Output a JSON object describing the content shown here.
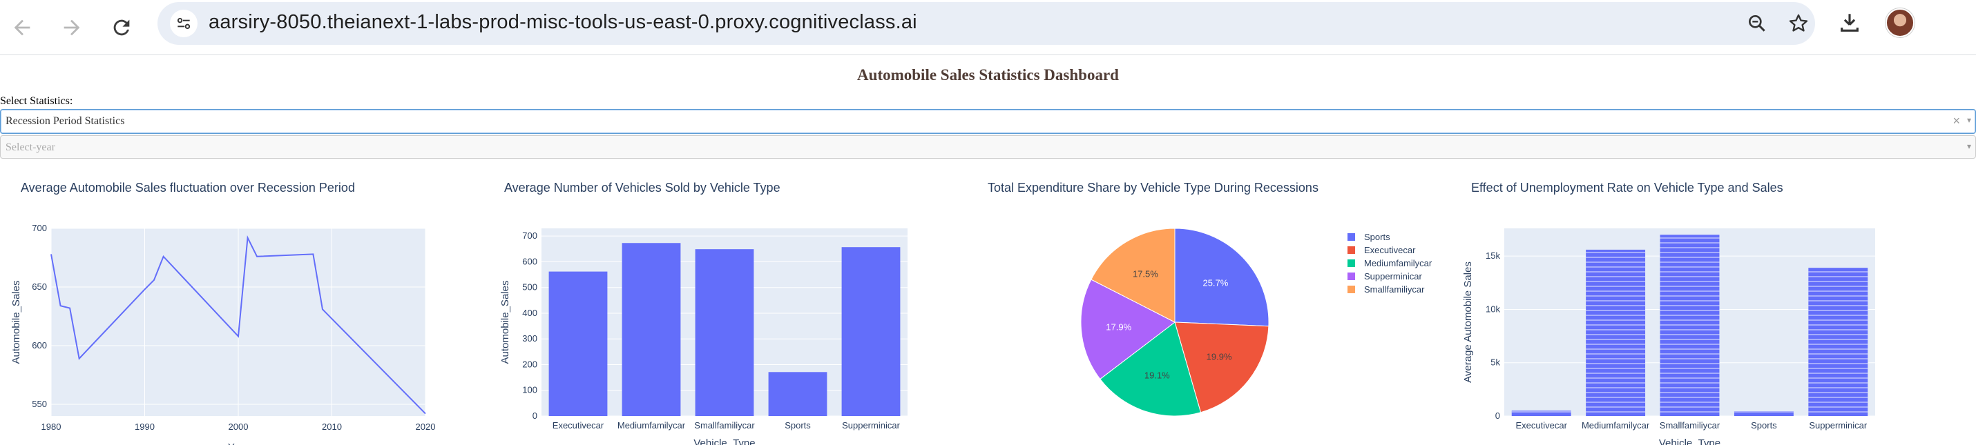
{
  "browser": {
    "url": "aarsiry-8050.theianext-1-labs-prod-misc-tools-us-east-0.proxy.cognitiveclass.ai",
    "icons": [
      "back-arrow-icon",
      "forward-arrow-icon",
      "reload-icon",
      "site-settings-icon",
      "zoom-icon",
      "bookmark-star-icon",
      "download-icon",
      "profile-avatar"
    ]
  },
  "dashboard": {
    "title": "Automobile Sales Statistics Dashboard",
    "select_label": "Select Statistics:",
    "stats_dropdown_value": "Recession Period Statistics",
    "year_dropdown_placeholder": "Select-year",
    "clear_symbol": "×",
    "arrow_symbol": "▾"
  },
  "colors": {
    "title": "#503D36",
    "plot_bg": "#E5ECF6",
    "primary_series": "#636EFA",
    "pie_colors": [
      "#636EFA",
      "#EF553B",
      "#00CC96",
      "#AB63FA",
      "#FFA15A"
    ]
  },
  "chart_data": [
    {
      "type": "line",
      "title": "Average Automobile Sales fluctuation over Recession Period",
      "xlabel": "Year",
      "ylabel": "Automobile_Sales",
      "x": [
        1980,
        1981,
        1982,
        1983,
        1990,
        1991,
        1992,
        2000,
        2001,
        2002,
        2008,
        2009,
        2020
      ],
      "y": [
        678,
        634,
        632,
        589,
        648,
        656,
        676,
        608,
        692,
        676,
        678,
        631,
        542
      ],
      "xlim": [
        1980,
        2020
      ],
      "ylim": [
        540,
        700
      ],
      "xticks": [
        1980,
        1990,
        2000,
        2010,
        2020
      ],
      "yticks": [
        550,
        600,
        650,
        700
      ],
      "grid": true
    },
    {
      "type": "bar",
      "title": "Average Number of Vehicles Sold by Vehicle Type",
      "xlabel": "Vehicle_Type",
      "ylabel": "Automobile_Sales",
      "categories": [
        "Executivecar",
        "Mediumfamilycar",
        "Smallfamiliycar",
        "Sports",
        "Supperminicar"
      ],
      "values": [
        562,
        673,
        649,
        171,
        657
      ],
      "ylim": [
        0,
        730
      ],
      "yticks": [
        0,
        100,
        200,
        300,
        400,
        500,
        600,
        700
      ],
      "grid": true
    },
    {
      "type": "pie",
      "title": "Total Expenditure Share by Vehicle Type During Recessions",
      "labels": [
        "Sports",
        "Executivecar",
        "Mediumfamilycar",
        "Supperminicar",
        "Smallfamiliycar"
      ],
      "values": [
        25.7,
        19.9,
        19.1,
        17.9,
        17.5
      ],
      "slice_labels": [
        "25.7%",
        "19.9%",
        "19.1%",
        "17.9%",
        "17.5%"
      ],
      "legend": "right"
    },
    {
      "type": "bar",
      "title": "Effect of Unemployment Rate on Vehicle Type and Sales",
      "xlabel": "Vehicle_Type",
      "ylabel": "Average Automobile Sales",
      "categories": [
        "Executivecar",
        "Mediumfamilycar",
        "Smallfamiliycar",
        "Sports",
        "Supperminicar"
      ],
      "values": [
        500,
        15600,
        17000,
        450,
        13900
      ],
      "ylim": [
        0,
        17600
      ],
      "yticks": [
        0,
        5000,
        10000,
        15000
      ],
      "ytick_labels": [
        "0",
        "5k",
        "10k",
        "15k"
      ],
      "grid": true
    }
  ]
}
